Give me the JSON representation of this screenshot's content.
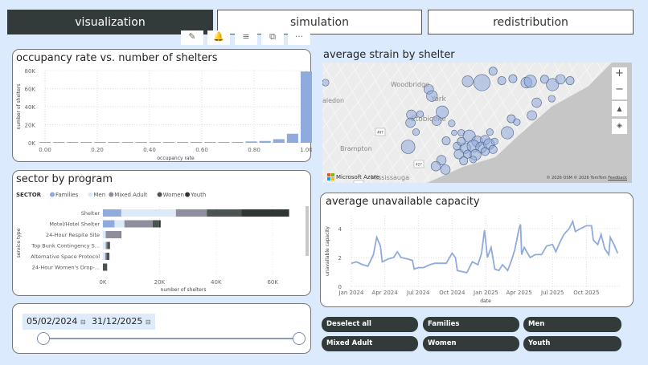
{
  "tabs": [
    {
      "label": "visualization",
      "active": true
    },
    {
      "label": "simulation",
      "active": false
    },
    {
      "label": "redistribution",
      "active": false
    }
  ],
  "toolbar": [
    "pin-icon",
    "bell-icon",
    "filter-icon",
    "focus-mode-icon",
    "more-options-icon"
  ],
  "toolbar_glyphs": [
    "✎",
    "🔔",
    "≡",
    "⧉",
    "···"
  ],
  "histogram": {
    "title": "occupancy rate vs. number of shelters"
  },
  "stacked": {
    "title": "sector by program"
  },
  "map": {
    "title": "average strain by shelter",
    "labels": [
      "Woodbridge",
      "York",
      "aledon",
      "Brampton",
      "Etobicoke",
      "Mississauga"
    ],
    "shields": [
      "407",
      "427",
      "401"
    ],
    "brand": "Microsoft Azure",
    "attribution": "© 2026 OSM © 2026 TomTom",
    "feedback": "Feedback",
    "controls": [
      "+",
      "−",
      "▲",
      "◈"
    ]
  },
  "line": {
    "title": "average unavailable capacity"
  },
  "date_slicer": {
    "start": "05/02/2024",
    "end": "31/12/2025",
    "range_fraction": [
      0,
      1
    ]
  },
  "sector_buttons": [
    "Deselect all",
    "Families",
    "Men",
    "Mixed Adult",
    "Women",
    "Youth"
  ],
  "colors": {
    "accent": "#8faadc",
    "dark": "#323b3a",
    "bg": "#dbeafc"
  },
  "chart_data": [
    {
      "type": "bar",
      "title": "occupancy rate vs. number of shelters",
      "xlabel": "occupancy rate",
      "ylabel": "number of shelters",
      "xticks": [
        "0.00",
        "0.20",
        "0.40",
        "0.60",
        "0.80",
        "1.00"
      ],
      "yticks": [
        "0K",
        "20K",
        "40K",
        "60K",
        "80K"
      ],
      "ylim": [
        0,
        80000
      ],
      "grid": true,
      "x": [
        0.05,
        0.1,
        0.15,
        0.2,
        0.25,
        0.3,
        0.35,
        0.4,
        0.45,
        0.5,
        0.55,
        0.6,
        0.65,
        0.7,
        0.75,
        0.8,
        0.85,
        0.9,
        0.95,
        1.0
      ],
      "values": [
        300,
        300,
        300,
        300,
        300,
        300,
        300,
        300,
        300,
        500,
        300,
        300,
        300,
        300,
        800,
        1500,
        2000,
        4000,
        10000,
        79000
      ]
    },
    {
      "type": "bar",
      "orientation": "horizontal",
      "stacked": true,
      "title": "sector by program",
      "xlabel": "number of shelters",
      "ylabel": "service type",
      "legend_title": "SECTOR",
      "legend": "top-left",
      "xticks": [
        "0K",
        "20K",
        "40K",
        "60K"
      ],
      "xlim": [
        0,
        68000
      ],
      "categories": [
        "Shelter",
        "Motel/Hotel Shelter",
        "24-Hour Respite Site",
        "Top Bunk Contingency S...",
        "Alternative Space Protocol",
        "24-Hour Women's Drop-..."
      ],
      "series": [
        {
          "name": "Families",
          "color": "#8faadc",
          "values": [
            6500,
            4100,
            0,
            0,
            0,
            0
          ]
        },
        {
          "name": "Men",
          "color": "#dce9f7",
          "values": [
            19300,
            3500,
            1000,
            1000,
            800,
            0
          ]
        },
        {
          "name": "Mixed Adult",
          "color": "#8e8e9c",
          "values": [
            10900,
            10000,
            5300,
            500,
            500,
            0
          ]
        },
        {
          "name": "Women",
          "color": "#4b5452",
          "values": [
            12300,
            2200,
            200,
            1000,
            1000,
            1500
          ]
        },
        {
          "name": "Youth",
          "color": "#2e3532",
          "values": [
            16800,
            600,
            0,
            0,
            0,
            0
          ]
        }
      ]
    },
    {
      "type": "line",
      "title": "average unavailable capacity",
      "xlabel": "date",
      "ylabel": "unavailable capacity",
      "yticks": [
        "0",
        "2",
        "4"
      ],
      "ylim": [
        0,
        5
      ],
      "xticks": [
        "Jan 2024",
        "Apr 2024",
        "Jul 2024",
        "Oct 2024",
        "Jan 2025",
        "Apr 2025",
        "Jul 2025",
        "Oct 2025"
      ],
      "grid": true,
      "points": [
        [
          "2024-01-01",
          1.6
        ],
        [
          "2024-01-15",
          1.7
        ],
        [
          "2024-02-01",
          1.5
        ],
        [
          "2024-02-15",
          1.4
        ],
        [
          "2024-03-01",
          2.2
        ],
        [
          "2024-03-10",
          3.4
        ],
        [
          "2024-03-20",
          2.8
        ],
        [
          "2024-03-25",
          1.7
        ],
        [
          "2024-04-10",
          1.9
        ],
        [
          "2024-04-25",
          2.0
        ],
        [
          "2024-05-05",
          2.4
        ],
        [
          "2024-05-15",
          2.0
        ],
        [
          "2024-06-01",
          1.9
        ],
        [
          "2024-06-15",
          1.8
        ],
        [
          "2024-06-20",
          1.2
        ],
        [
          "2024-07-01",
          1.3
        ],
        [
          "2024-07-15",
          1.3
        ],
        [
          "2024-08-01",
          1.5
        ],
        [
          "2024-08-15",
          1.6
        ],
        [
          "2024-09-01",
          1.6
        ],
        [
          "2024-09-15",
          1.6
        ],
        [
          "2024-10-01",
          2.3
        ],
        [
          "2024-10-10",
          2.0
        ],
        [
          "2024-10-15",
          1.1
        ],
        [
          "2024-11-01",
          1.0
        ],
        [
          "2024-11-10",
          0.95
        ],
        [
          "2024-11-25",
          1.7
        ],
        [
          "2024-12-10",
          1.5
        ],
        [
          "2024-12-20",
          2.3
        ],
        [
          "2024-12-28",
          3.9
        ],
        [
          "2025-01-05",
          2.0
        ],
        [
          "2025-01-15",
          2.7
        ],
        [
          "2025-01-25",
          1.2
        ],
        [
          "2025-02-05",
          1.1
        ],
        [
          "2025-02-15",
          1.5
        ],
        [
          "2025-03-01",
          1.1
        ],
        [
          "2025-03-10",
          1.7
        ],
        [
          "2025-03-20",
          2.5
        ],
        [
          "2025-04-01",
          4.0
        ],
        [
          "2025-04-05",
          4.3
        ],
        [
          "2025-04-08",
          2.2
        ],
        [
          "2025-04-15",
          2.7
        ],
        [
          "2025-05-01",
          2.0
        ],
        [
          "2025-05-15",
          2.2
        ],
        [
          "2025-06-01",
          2.2
        ],
        [
          "2025-06-15",
          2.8
        ],
        [
          "2025-07-01",
          2.9
        ],
        [
          "2025-07-10",
          2.4
        ],
        [
          "2025-07-20",
          3.0
        ],
        [
          "2025-08-01",
          3.6
        ],
        [
          "2025-08-15",
          4.0
        ],
        [
          "2025-08-25",
          4.5
        ],
        [
          "2025-09-01",
          3.8
        ],
        [
          "2025-09-15",
          4.0
        ],
        [
          "2025-10-01",
          4.2
        ],
        [
          "2025-10-15",
          4.2
        ],
        [
          "2025-10-20",
          3.2
        ],
        [
          "2025-11-01",
          2.9
        ],
        [
          "2025-11-10",
          3.6
        ],
        [
          "2025-11-20",
          2.6
        ],
        [
          "2025-12-01",
          2.2
        ],
        [
          "2025-12-05",
          3.4
        ],
        [
          "2025-12-15",
          2.9
        ],
        [
          "2025-12-25",
          2.3
        ]
      ]
    }
  ]
}
